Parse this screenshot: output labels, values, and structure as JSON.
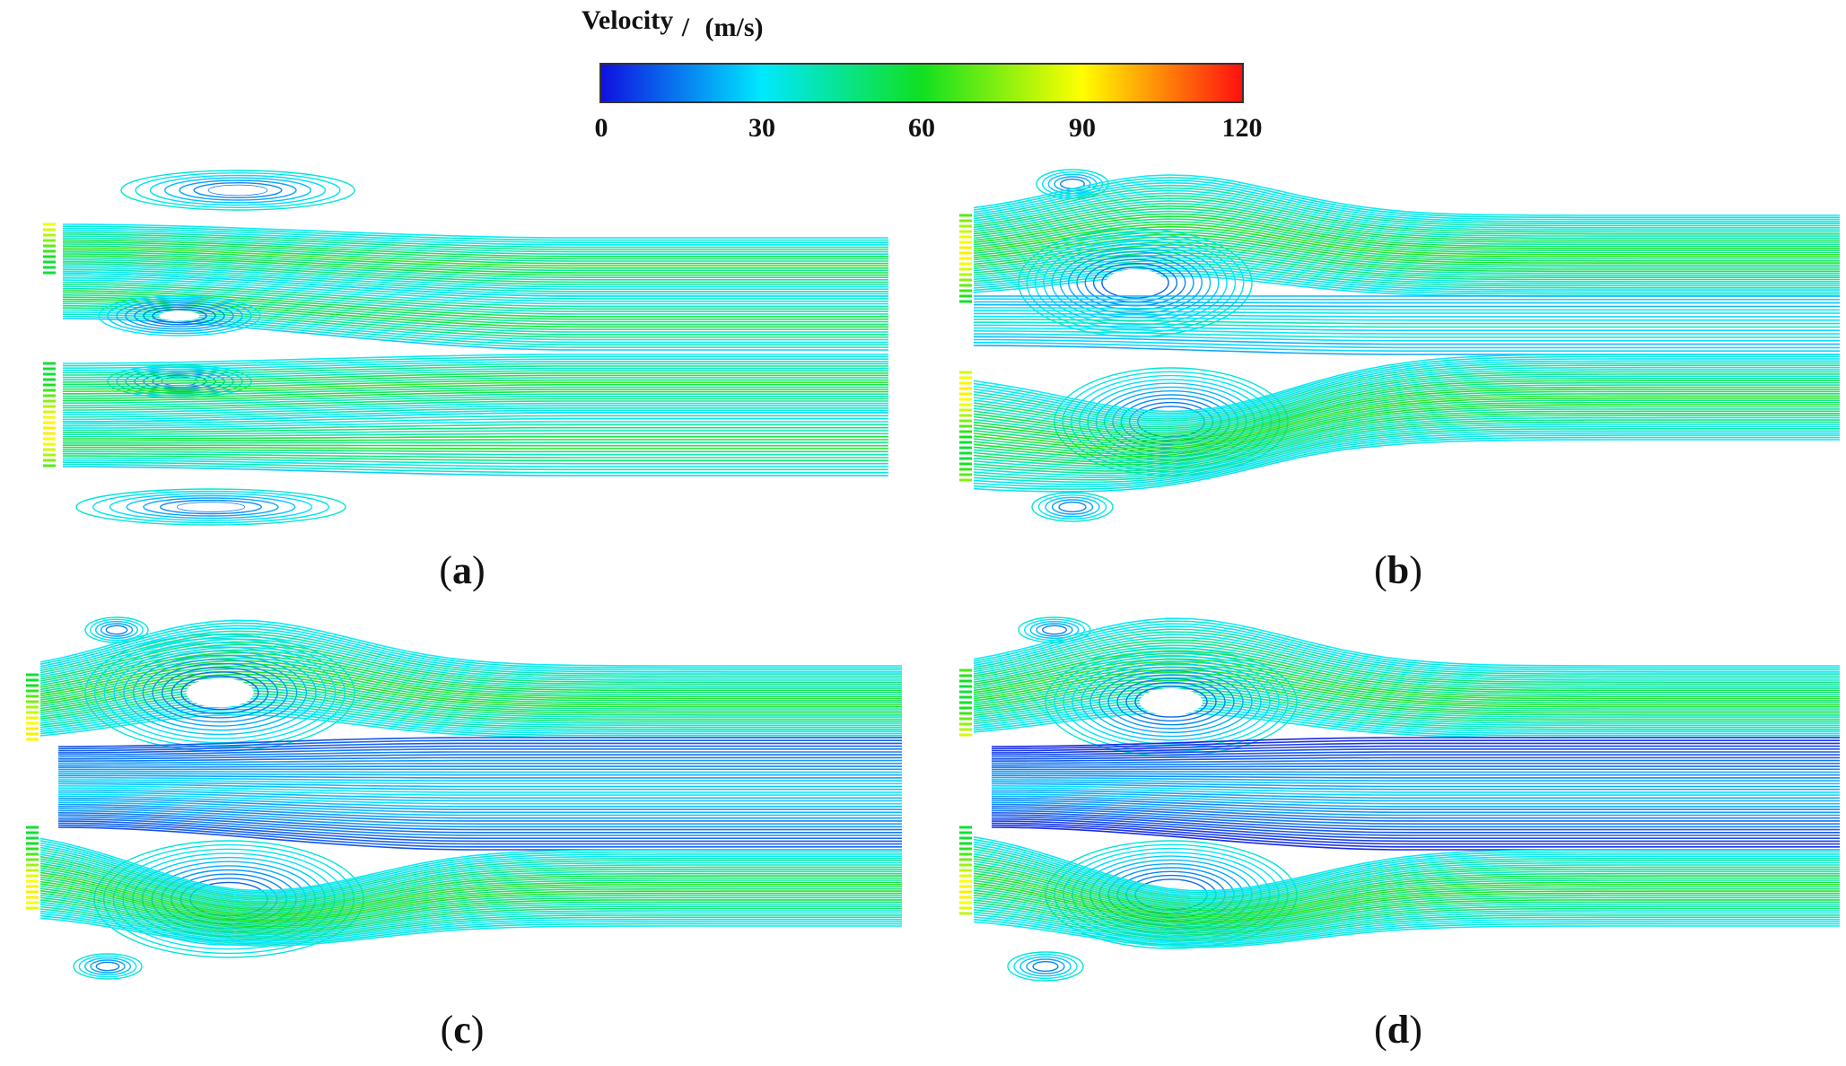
{
  "colorbar": {
    "title": "Velocity",
    "separator": "/",
    "unit": "(m/s)",
    "min": 0,
    "max": 120,
    "ticks": [
      "0",
      "30",
      "60",
      "90",
      "120"
    ],
    "colors": [
      "#1010e0",
      "#00e8ff",
      "#10e020",
      "#ffff00",
      "#ff1010"
    ]
  },
  "panels": [
    {
      "id": "a",
      "label_open": "(",
      "label": "a",
      "label_close": ")"
    },
    {
      "id": "b",
      "label_open": "(",
      "label": "b",
      "label_close": ")"
    },
    {
      "id": "c",
      "label_open": "(",
      "label": "c",
      "label_close": ")"
    },
    {
      "id": "d",
      "label_open": "(",
      "label": "d",
      "label_close": ")"
    }
  ]
}
